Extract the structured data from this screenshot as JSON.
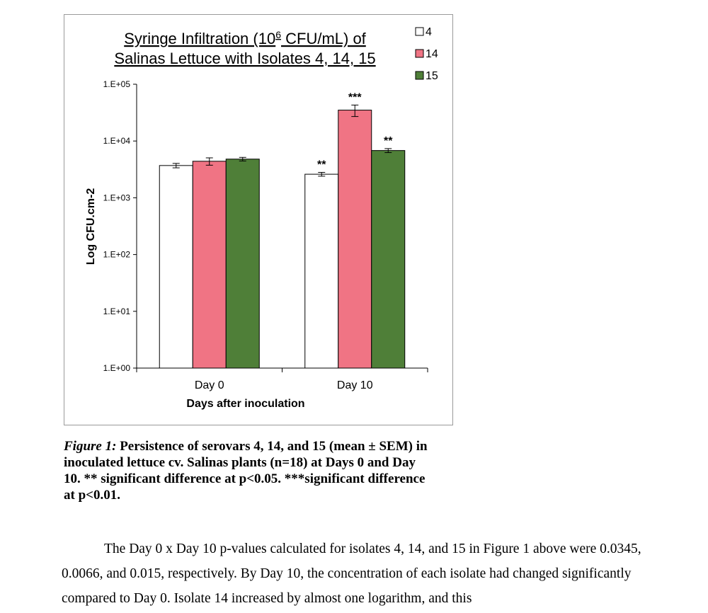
{
  "chart_data": {
    "type": "bar",
    "title_line1_pre": "Syringe Infiltration (10",
    "title_sup": "6",
    "title_line1_post": " CFU/mL) of",
    "title_line2": "Salinas Lettuce with Isolates 4, 14, 15",
    "xlabel": "Days after inoculation",
    "ylabel": "Log CFU.cm-2",
    "yscale": "log",
    "ylim": [
      1,
      100000
    ],
    "yticks": [
      1,
      10,
      100,
      1000,
      10000,
      100000
    ],
    "ytick_labels": [
      "1.E+00",
      "1.E+01",
      "1.E+02",
      "1.E+03",
      "1.E+04",
      "1.E+05"
    ],
    "categories": [
      "Day 0",
      "Day 10"
    ],
    "series": [
      {
        "name": "4",
        "color": "#ffffff",
        "values": [
          3700,
          2600
        ],
        "errors": [
          330,
          200
        ],
        "annotations": [
          "",
          "**"
        ]
      },
      {
        "name": "14",
        "color": "#f07484",
        "values": [
          4400,
          35000
        ],
        "errors": [
          650,
          8000
        ],
        "annotations": [
          "",
          "***"
        ]
      },
      {
        "name": "15",
        "color": "#4f7f38",
        "values": [
          4800,
          6800
        ],
        "errors": [
          350,
          550
        ],
        "annotations": [
          "",
          "**"
        ]
      }
    ],
    "grid": false,
    "legend": "top-right"
  },
  "caption": {
    "label": "Figure 1:",
    "text": " Persistence of serovars 4, 14, and 15 (mean ± SEM) in inoculated lettuce cv. Salinas plants (n=18) at Days 0 and Day 10. ** significant difference at p<0.05. ***significant difference at p<0.01."
  },
  "body": {
    "paragraph": "The Day 0 x Day 10 p-values calculated for isolates 4, 14, and 15 in Figure 1 above were 0.0345, 0.0066, and 0.015, respectively. By Day 10, the concentration of each isolate had changed significantly compared to Day 0. Isolate 14 increased by almost one logarithm, and this"
  }
}
